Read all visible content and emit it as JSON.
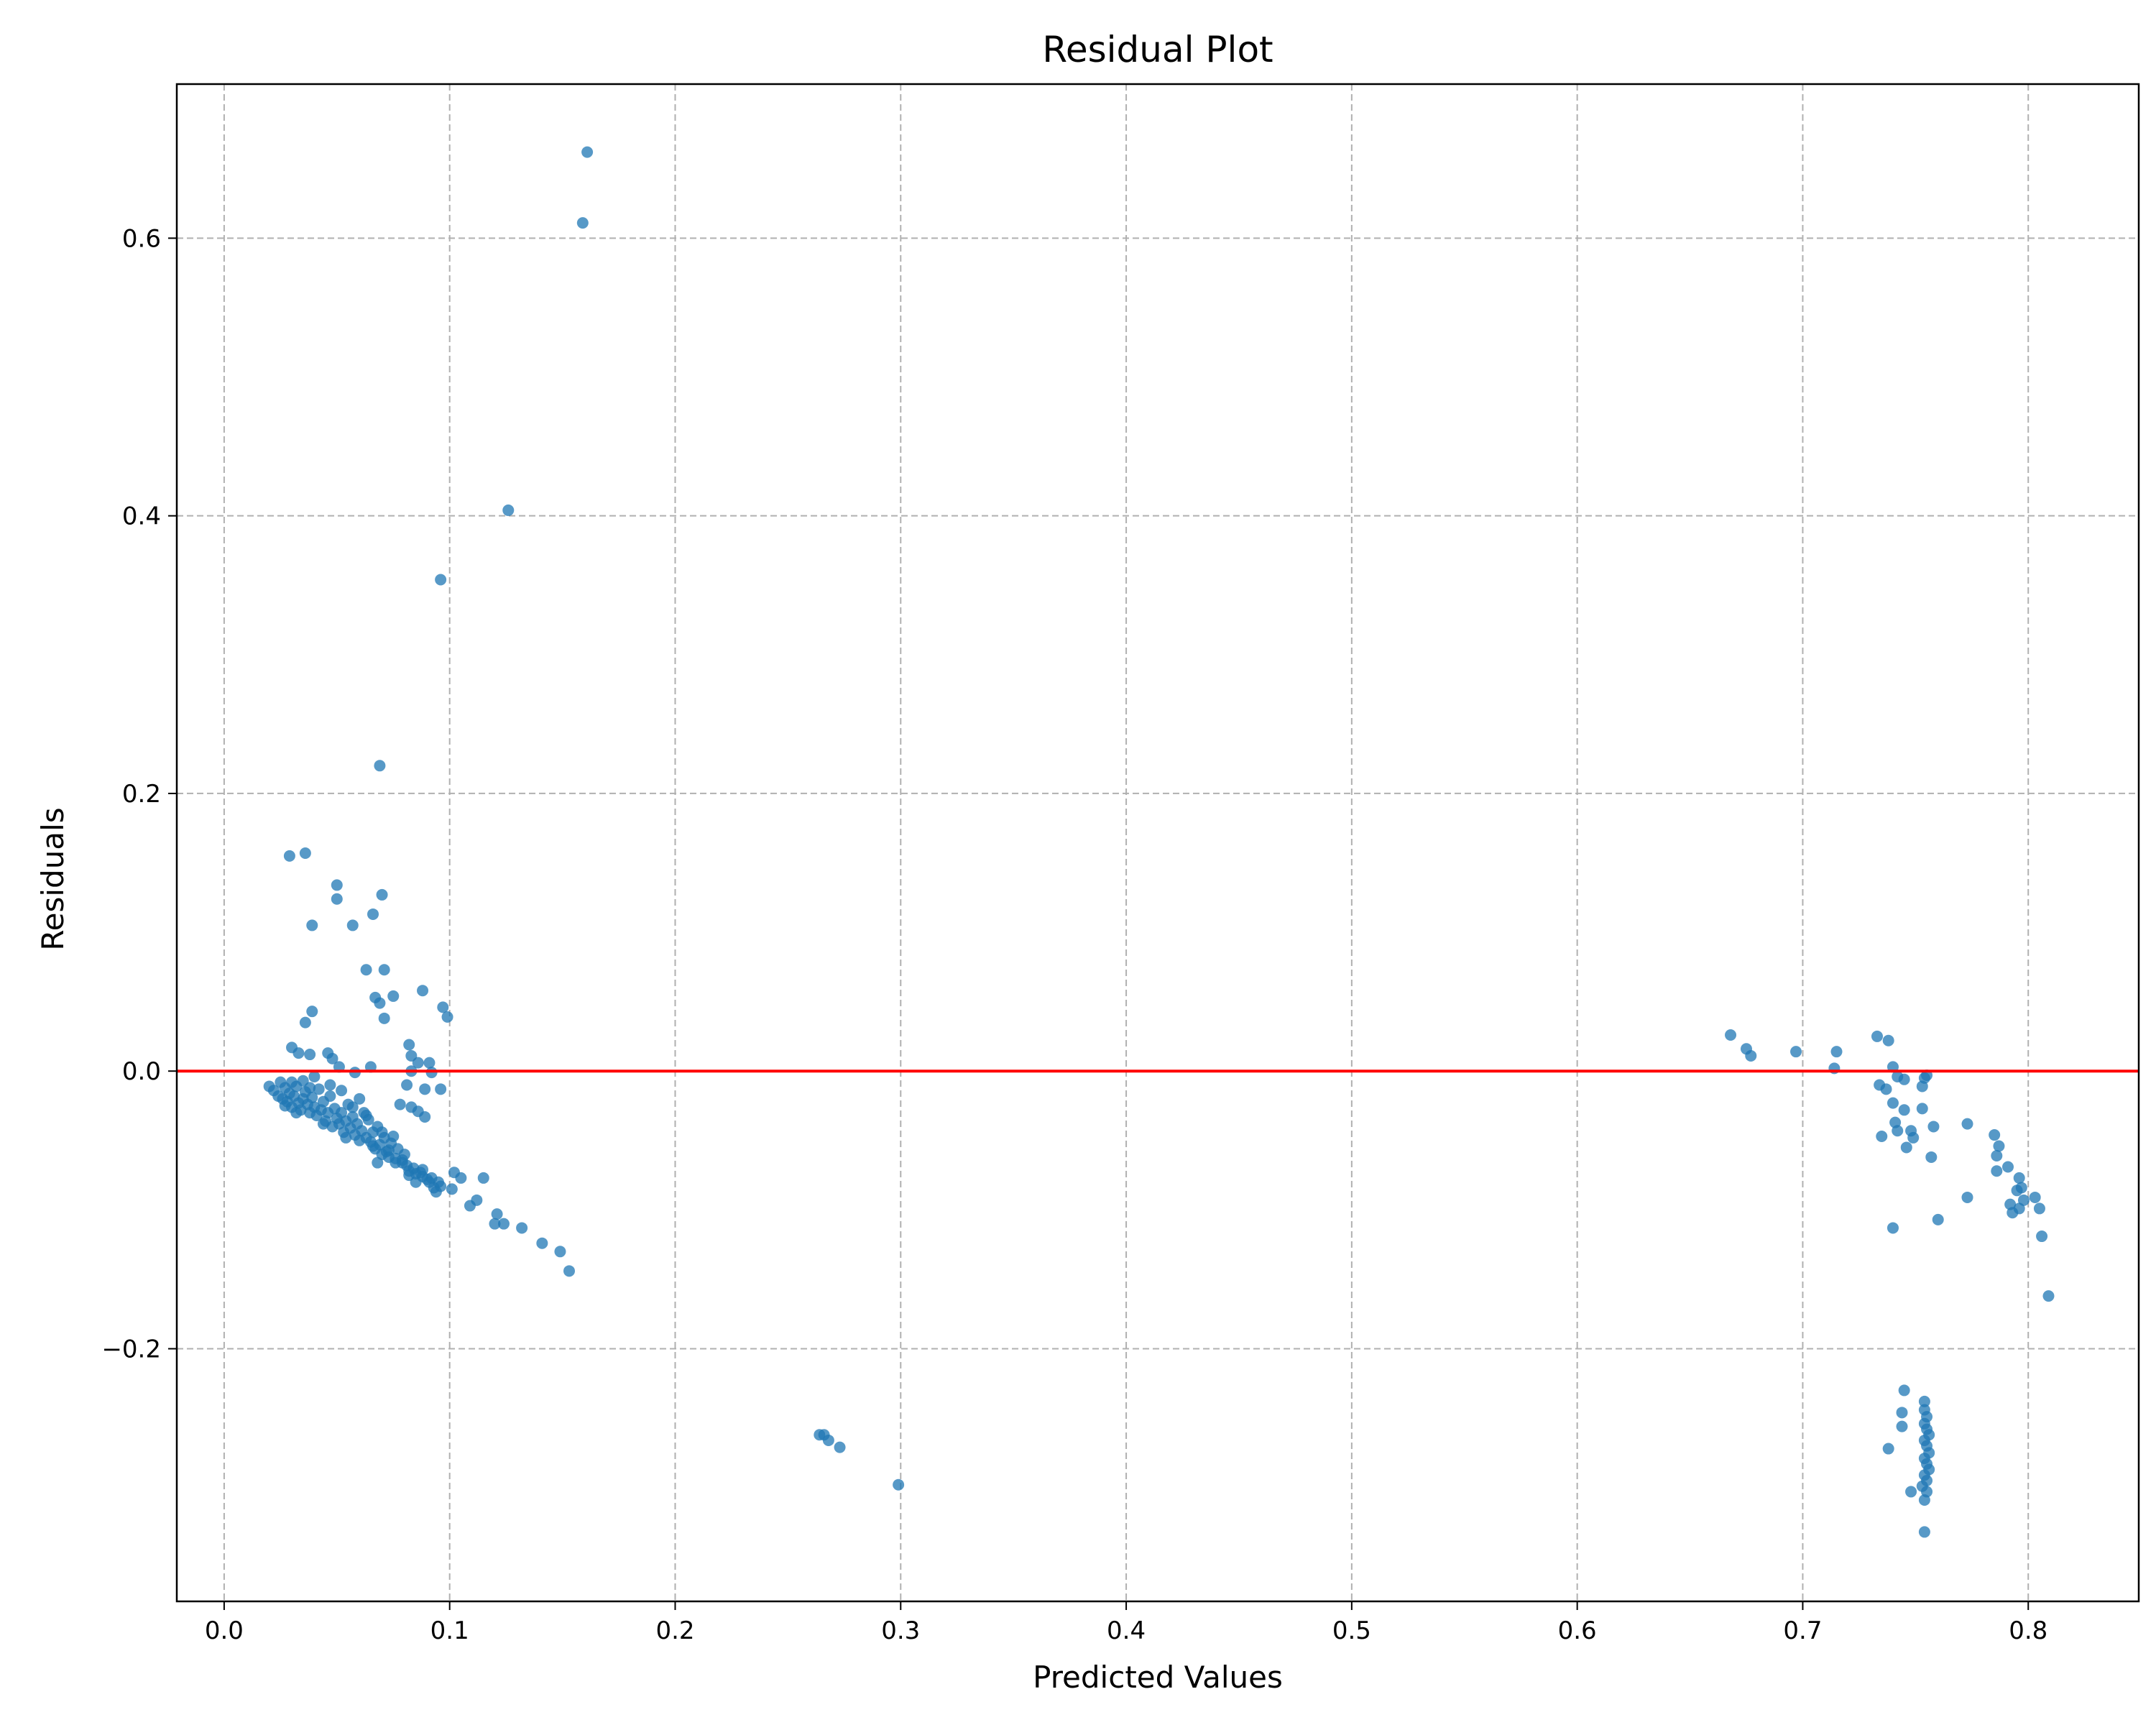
{
  "chart_data": {
    "type": "scatter",
    "title": "Residual Plot",
    "xlabel": "Predicted Values",
    "ylabel": "Residuals",
    "xlim": [
      -0.021,
      0.849
    ],
    "ylim": [
      -0.382,
      0.711
    ],
    "xticks": [
      0.0,
      0.1,
      0.2,
      0.3,
      0.4,
      0.5,
      0.6,
      0.7,
      0.8
    ],
    "xtick_labels": [
      "0.0",
      "0.1",
      "0.2",
      "0.3",
      "0.4",
      "0.5",
      "0.6",
      "0.7",
      "0.8"
    ],
    "yticks": [
      -0.2,
      0.0,
      0.2,
      0.4,
      0.6
    ],
    "ytick_labels": [
      "−0.2",
      "0.0",
      "0.2",
      "0.4",
      "0.6"
    ],
    "grid": true,
    "grid_style": "dashed",
    "reference_line": {
      "y": 0.0,
      "color": "#ff0000"
    },
    "marker_color": "#1f77b4",
    "series": [
      {
        "points": [
          [
            0.161,
            0.662
          ],
          [
            0.159,
            0.611
          ],
          [
            0.126,
            0.404
          ],
          [
            0.096,
            0.354
          ],
          [
            0.069,
            0.22
          ],
          [
            0.029,
            0.155
          ],
          [
            0.036,
            0.157
          ],
          [
            0.05,
            0.134
          ],
          [
            0.05,
            0.124
          ],
          [
            0.039,
            0.105
          ],
          [
            0.057,
            0.105
          ],
          [
            0.066,
            0.113
          ],
          [
            0.07,
            0.127
          ],
          [
            0.063,
            0.073
          ],
          [
            0.071,
            0.073
          ],
          [
            0.067,
            0.053
          ],
          [
            0.069,
            0.049
          ],
          [
            0.075,
            0.054
          ],
          [
            0.088,
            0.058
          ],
          [
            0.097,
            0.046
          ],
          [
            0.099,
            0.039
          ],
          [
            0.071,
            0.038
          ],
          [
            0.039,
            0.043
          ],
          [
            0.036,
            0.035
          ],
          [
            0.03,
            0.017
          ],
          [
            0.033,
            0.013
          ],
          [
            0.038,
            0.012
          ],
          [
            0.046,
            0.013
          ],
          [
            0.048,
            0.009
          ],
          [
            0.051,
            0.003
          ],
          [
            0.065,
            0.003
          ],
          [
            0.058,
            -0.001
          ],
          [
            0.082,
            0.019
          ],
          [
            0.083,
            0.011
          ],
          [
            0.086,
            0.006
          ],
          [
            0.091,
            0.006
          ],
          [
            0.083,
            0.0
          ],
          [
            0.092,
            -0.001
          ],
          [
            0.089,
            -0.013
          ],
          [
            0.096,
            -0.013
          ],
          [
            0.081,
            -0.01
          ],
          [
            0.02,
            -0.011
          ],
          [
            0.022,
            -0.014
          ],
          [
            0.024,
            -0.018
          ],
          [
            0.026,
            -0.02
          ],
          [
            0.027,
            -0.012
          ],
          [
            0.028,
            -0.022
          ],
          [
            0.029,
            -0.016
          ],
          [
            0.03,
            -0.026
          ],
          [
            0.031,
            -0.018
          ],
          [
            0.032,
            -0.011
          ],
          [
            0.033,
            -0.023
          ],
          [
            0.034,
            -0.028
          ],
          [
            0.035,
            -0.02
          ],
          [
            0.036,
            -0.015
          ],
          [
            0.037,
            -0.024
          ],
          [
            0.038,
            -0.03
          ],
          [
            0.039,
            -0.019
          ],
          [
            0.04,
            -0.026
          ],
          [
            0.041,
            -0.032
          ],
          [
            0.042,
            -0.013
          ],
          [
            0.043,
            -0.028
          ],
          [
            0.044,
            -0.022
          ],
          [
            0.045,
            -0.036
          ],
          [
            0.046,
            -0.03
          ],
          [
            0.047,
            -0.018
          ],
          [
            0.048,
            -0.04
          ],
          [
            0.049,
            -0.027
          ],
          [
            0.05,
            -0.034
          ],
          [
            0.051,
            -0.038
          ],
          [
            0.052,
            -0.03
          ],
          [
            0.053,
            -0.044
          ],
          [
            0.054,
            -0.036
          ],
          [
            0.055,
            -0.024
          ],
          [
            0.056,
            -0.041
          ],
          [
            0.057,
            -0.033
          ],
          [
            0.058,
            -0.046
          ],
          [
            0.059,
            -0.038
          ],
          [
            0.06,
            -0.02
          ],
          [
            0.061,
            -0.043
          ],
          [
            0.062,
            -0.03
          ],
          [
            0.063,
            -0.048
          ],
          [
            0.064,
            -0.035
          ],
          [
            0.065,
            -0.051
          ],
          [
            0.066,
            -0.044
          ],
          [
            0.067,
            -0.056
          ],
          [
            0.068,
            -0.04
          ],
          [
            0.069,
            -0.053
          ],
          [
            0.07,
            -0.06
          ],
          [
            0.071,
            -0.048
          ],
          [
            0.072,
            -0.058
          ],
          [
            0.073,
            -0.062
          ],
          [
            0.074,
            -0.052
          ],
          [
            0.075,
            -0.047
          ],
          [
            0.076,
            -0.063
          ],
          [
            0.077,
            -0.056
          ],
          [
            0.078,
            -0.024
          ],
          [
            0.079,
            -0.066
          ],
          [
            0.08,
            -0.06
          ],
          [
            0.081,
            -0.068
          ],
          [
            0.082,
            -0.072
          ],
          [
            0.083,
            -0.026
          ],
          [
            0.084,
            -0.07
          ],
          [
            0.085,
            -0.074
          ],
          [
            0.086,
            -0.029
          ],
          [
            0.087,
            -0.073
          ],
          [
            0.088,
            -0.076
          ],
          [
            0.089,
            -0.033
          ],
          [
            0.09,
            -0.078
          ],
          [
            0.091,
            -0.08
          ],
          [
            0.092,
            -0.077
          ],
          [
            0.093,
            -0.084
          ],
          [
            0.094,
            -0.087
          ],
          [
            0.095,
            -0.08
          ],
          [
            0.096,
            -0.083
          ],
          [
            0.101,
            -0.085
          ],
          [
            0.102,
            -0.073
          ],
          [
            0.105,
            -0.077
          ],
          [
            0.109,
            -0.097
          ],
          [
            0.112,
            -0.093
          ],
          [
            0.115,
            -0.077
          ],
          [
            0.12,
            -0.11
          ],
          [
            0.121,
            -0.103
          ],
          [
            0.124,
            -0.11
          ],
          [
            0.132,
            -0.113
          ],
          [
            0.141,
            -0.124
          ],
          [
            0.149,
            -0.13
          ],
          [
            0.153,
            -0.144
          ],
          [
            0.025,
            -0.008
          ],
          [
            0.027,
            -0.025
          ],
          [
            0.03,
            -0.008
          ],
          [
            0.032,
            -0.03
          ],
          [
            0.035,
            -0.007
          ],
          [
            0.038,
            -0.012
          ],
          [
            0.04,
            -0.004
          ],
          [
            0.044,
            -0.038
          ],
          [
            0.047,
            -0.01
          ],
          [
            0.052,
            -0.014
          ],
          [
            0.054,
            -0.048
          ],
          [
            0.057,
            -0.026
          ],
          [
            0.06,
            -0.05
          ],
          [
            0.063,
            -0.032
          ],
          [
            0.066,
            -0.054
          ],
          [
            0.068,
            -0.066
          ],
          [
            0.07,
            -0.044
          ],
          [
            0.073,
            -0.057
          ],
          [
            0.076,
            -0.066
          ],
          [
            0.079,
            -0.064
          ],
          [
            0.082,
            -0.075
          ],
          [
            0.085,
            -0.08
          ],
          [
            0.088,
            -0.071
          ],
          [
            0.264,
            -0.262
          ],
          [
            0.266,
            -0.262
          ],
          [
            0.268,
            -0.266
          ],
          [
            0.273,
            -0.271
          ],
          [
            0.299,
            -0.298
          ],
          [
            0.668,
            0.026
          ],
          [
            0.675,
            0.016
          ],
          [
            0.677,
            0.011
          ],
          [
            0.697,
            0.014
          ],
          [
            0.715,
            0.014
          ],
          [
            0.714,
            0.002
          ],
          [
            0.733,
            0.025
          ],
          [
            0.738,
            0.022
          ],
          [
            0.74,
            0.003
          ],
          [
            0.742,
            -0.004
          ],
          [
            0.745,
            -0.006
          ],
          [
            0.734,
            -0.01
          ],
          [
            0.737,
            -0.013
          ],
          [
            0.74,
            -0.023
          ],
          [
            0.741,
            -0.037
          ],
          [
            0.742,
            -0.043
          ],
          [
            0.745,
            -0.028
          ],
          [
            0.748,
            -0.043
          ],
          [
            0.749,
            -0.048
          ],
          [
            0.746,
            -0.055
          ],
          [
            0.735,
            -0.047
          ],
          [
            0.753,
            -0.027
          ],
          [
            0.754,
            -0.005
          ],
          [
            0.755,
            -0.003
          ],
          [
            0.753,
            -0.011
          ],
          [
            0.757,
            -0.062
          ],
          [
            0.758,
            -0.04
          ],
          [
            0.76,
            -0.107
          ],
          [
            0.74,
            -0.113
          ],
          [
            0.773,
            -0.038
          ],
          [
            0.773,
            -0.091
          ],
          [
            0.785,
            -0.046
          ],
          [
            0.786,
            -0.061
          ],
          [
            0.787,
            -0.054
          ],
          [
            0.786,
            -0.072
          ],
          [
            0.791,
            -0.069
          ],
          [
            0.792,
            -0.096
          ],
          [
            0.793,
            -0.102
          ],
          [
            0.795,
            -0.086
          ],
          [
            0.796,
            -0.077
          ],
          [
            0.797,
            -0.084
          ],
          [
            0.798,
            -0.093
          ],
          [
            0.796,
            -0.099
          ],
          [
            0.803,
            -0.091
          ],
          [
            0.805,
            -0.099
          ],
          [
            0.806,
            -0.119
          ],
          [
            0.809,
            -0.162
          ],
          [
            0.745,
            -0.23
          ],
          [
            0.744,
            -0.246
          ],
          [
            0.744,
            -0.256
          ],
          [
            0.738,
            -0.272
          ],
          [
            0.748,
            -0.303
          ],
          [
            0.754,
            -0.238
          ],
          [
            0.754,
            -0.244
          ],
          [
            0.755,
            -0.249
          ],
          [
            0.754,
            -0.254
          ],
          [
            0.755,
            -0.258
          ],
          [
            0.756,
            -0.262
          ],
          [
            0.754,
            -0.266
          ],
          [
            0.755,
            -0.27
          ],
          [
            0.756,
            -0.275
          ],
          [
            0.754,
            -0.279
          ],
          [
            0.755,
            -0.283
          ],
          [
            0.756,
            -0.287
          ],
          [
            0.754,
            -0.291
          ],
          [
            0.755,
            -0.295
          ],
          [
            0.753,
            -0.299
          ],
          [
            0.755,
            -0.303
          ],
          [
            0.754,
            -0.309
          ],
          [
            0.754,
            -0.332
          ]
        ]
      }
    ]
  }
}
